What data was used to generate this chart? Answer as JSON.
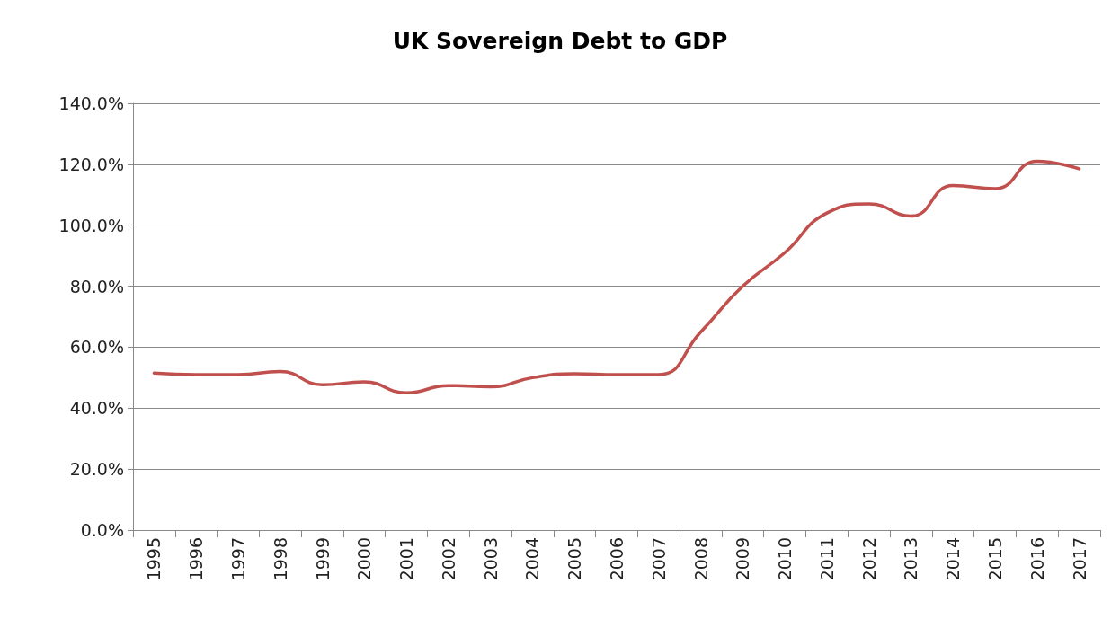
{
  "chart_data": {
    "type": "line",
    "title": "UK Sovereign Debt to GDP",
    "categories": [
      "1995",
      "1996",
      "1997",
      "1998",
      "1999",
      "2000",
      "2001",
      "2002",
      "2003",
      "2004",
      "2005",
      "2006",
      "2007",
      "2008",
      "2009",
      "2010",
      "2011",
      "2012",
      "2013",
      "2014",
      "2015",
      "2016",
      "2017"
    ],
    "series": [
      {
        "color": "#c0504d",
        "values": [
          51.5,
          51,
          51,
          52,
          47.7,
          48.6,
          45,
          47.4,
          47,
          50,
          51.3,
          51,
          51,
          65,
          80,
          91,
          104,
          107,
          103,
          113,
          112,
          121,
          118.5
        ]
      }
    ],
    "ylim": [
      0,
      140
    ],
    "yticks": [
      {
        "value": 0,
        "label": "0.0%"
      },
      {
        "value": 20,
        "label": "20.0%"
      },
      {
        "value": 40,
        "label": "40.0%"
      },
      {
        "value": 60,
        "label": "60.0%"
      },
      {
        "value": 80,
        "label": "80.0%"
      },
      {
        "value": 100,
        "label": "100.0%"
      },
      {
        "value": 120,
        "label": "120.0%"
      },
      {
        "value": 140,
        "label": "140.0%"
      }
    ],
    "grid": "y",
    "marker": "none",
    "line_style": "solid"
  }
}
